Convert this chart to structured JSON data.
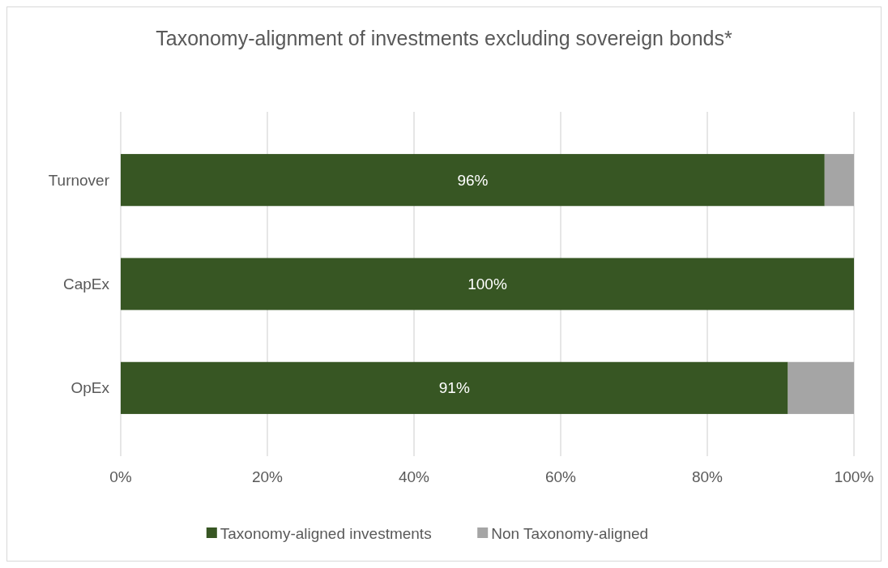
{
  "chart_data": {
    "type": "bar",
    "orientation": "horizontal",
    "stacked": true,
    "title": "Taxonomy-alignment of investments excluding sovereign bonds*",
    "categories": [
      "Turnover",
      "CapEx",
      "OpEx"
    ],
    "series": [
      {
        "name": "Taxonomy-aligned investments",
        "color": "#375623",
        "values": [
          96,
          100,
          91
        ],
        "value_labels": [
          "96%",
          "100%",
          "91%"
        ]
      },
      {
        "name": "Non Taxonomy-aligned",
        "color": "#a5a5a5",
        "values": [
          4,
          0,
          9
        ]
      }
    ],
    "xlim": [
      0,
      100
    ],
    "xticks": [
      {
        "value": 0,
        "label": "0%"
      },
      {
        "value": 20,
        "label": "20%"
      },
      {
        "value": 40,
        "label": "40%"
      },
      {
        "value": 60,
        "label": "60%"
      },
      {
        "value": 80,
        "label": "80%"
      },
      {
        "value": 100,
        "label": "100%"
      }
    ],
    "grid": "x",
    "legend": "bottom"
  }
}
